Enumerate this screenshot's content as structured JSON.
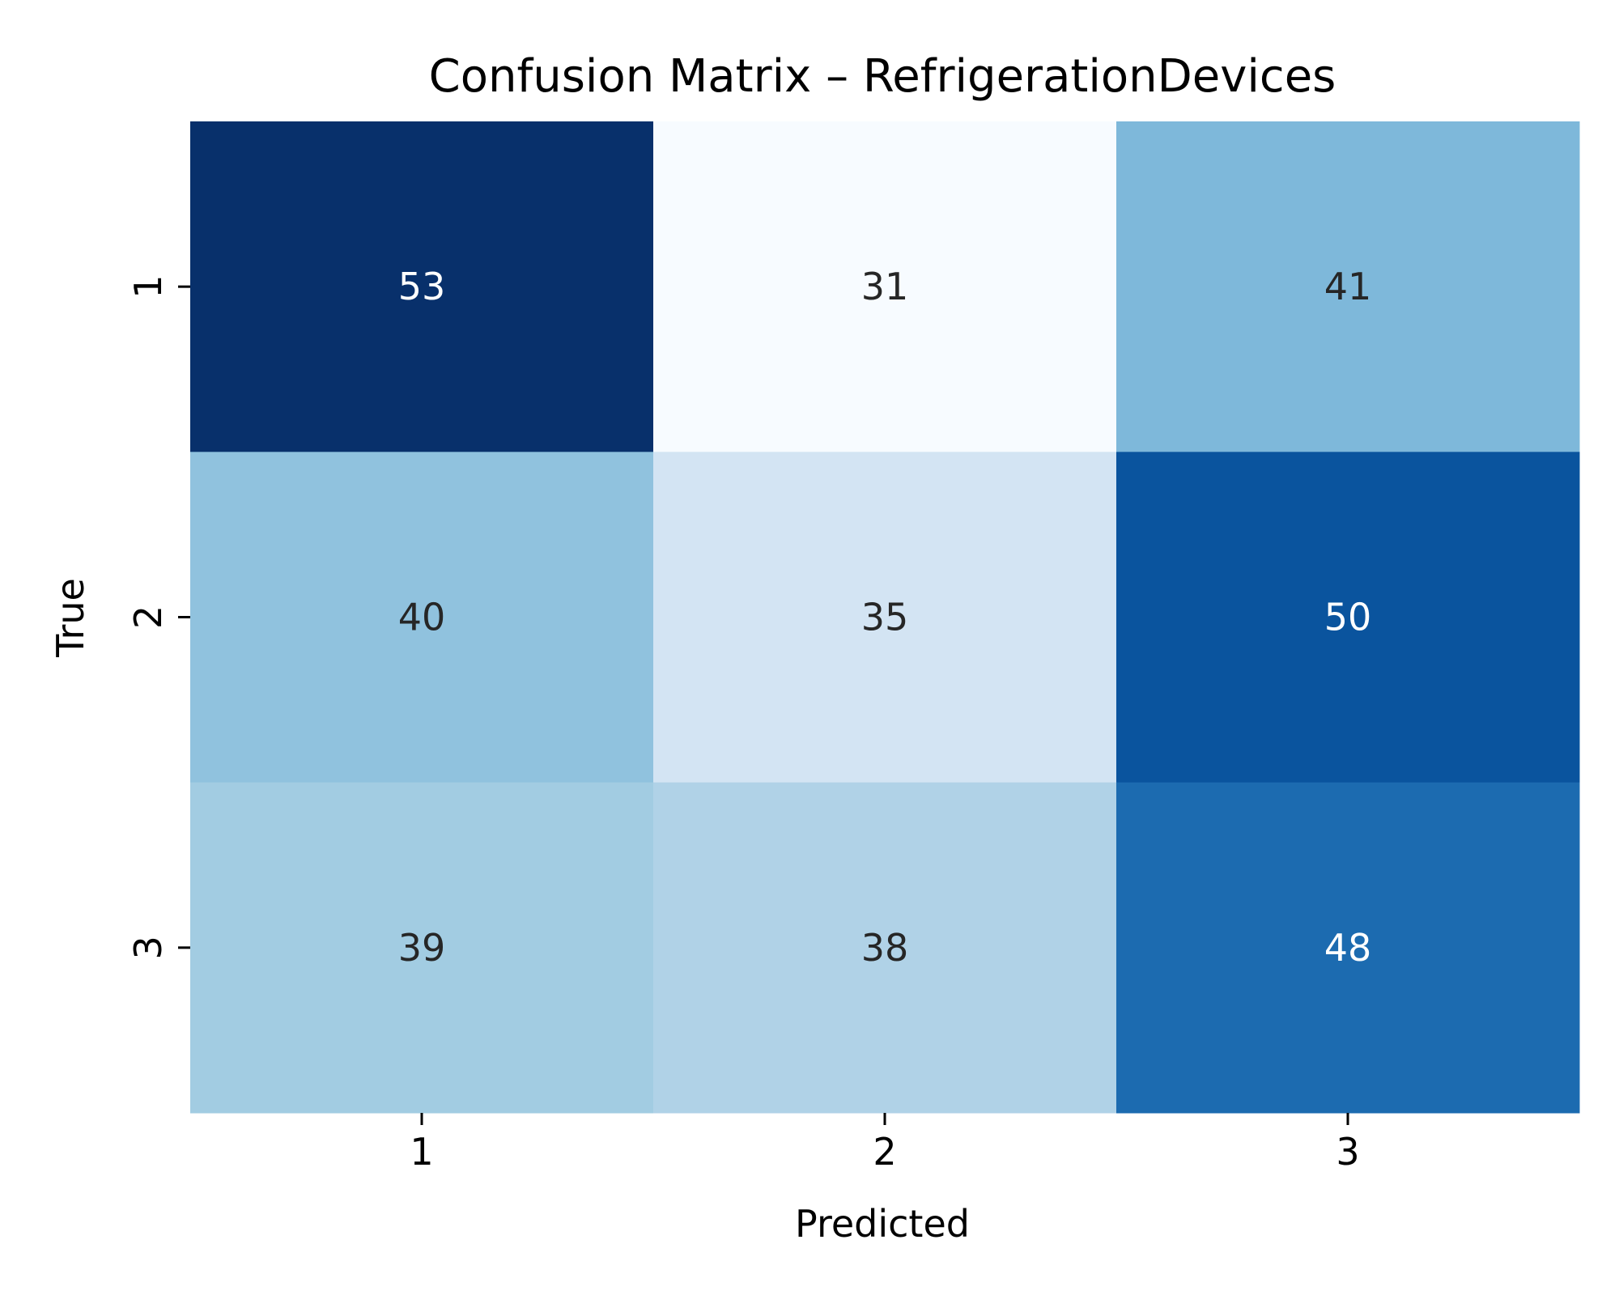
{
  "chart_data": {
    "type": "heatmap",
    "title": "Confusion Matrix – RefrigerationDevices",
    "xlabel": "Predicted",
    "ylabel": "True",
    "x_categories": [
      "1",
      "2",
      "3"
    ],
    "y_categories": [
      "1",
      "2",
      "3"
    ],
    "values": [
      [
        53,
        31,
        41
      ],
      [
        40,
        35,
        50
      ],
      [
        39,
        38,
        48
      ]
    ],
    "colormap": "Blues",
    "value_range": [
      31,
      53
    ],
    "colorbar": false,
    "annotations": true,
    "colors": {
      "low": "#f7fbff",
      "high": "#08306b",
      "text_dark": "#262626",
      "text_light": "#ffffff"
    }
  }
}
